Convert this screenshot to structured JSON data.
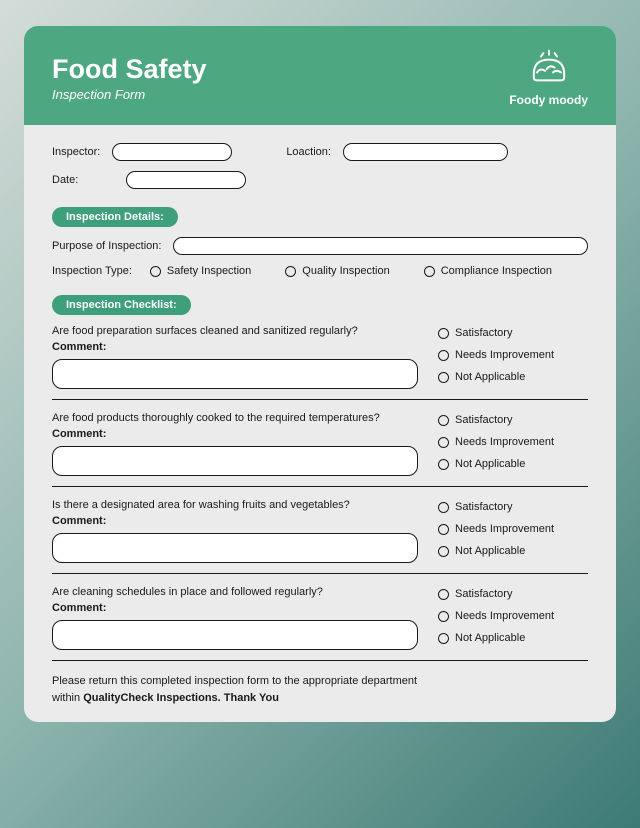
{
  "colors": {
    "header_bg": "#4da881",
    "pill_bg": "#3da07b",
    "card_bg": "#ebebeb",
    "text": "#1a1a1a",
    "border": "#1a1a1a"
  },
  "header": {
    "title": "Food Safety",
    "subtitle": "Inspection Form",
    "brand": "Foody moody"
  },
  "basic": {
    "inspector_label": "Inspector:",
    "location_label": "Loaction:",
    "date_label": "Date:"
  },
  "details": {
    "section_title": "Inspection Details:",
    "purpose_label": "Purpose of Inspection:",
    "type_label": "Inspection Type:",
    "types": [
      "Safety Inspection",
      "Quality Inspection",
      "Compliance Inspection"
    ]
  },
  "checklist": {
    "section_title": "Inspection Checklist:",
    "comment_label": "Comment:",
    "ratings": [
      "Satisfactory",
      "Needs Improvement",
      "Not Applicable"
    ],
    "items": [
      "Are food preparation surfaces cleaned and sanitized regularly?",
      "Are food products thoroughly cooked to the required temperatures?",
      "Is there a designated area for washing fruits and vegetables?",
      "Are cleaning schedules in place and followed regularly?"
    ]
  },
  "footer": {
    "line1": "Please return this completed inspection form to the appropriate department",
    "line2_prefix": "within ",
    "line2_bold": "QualityCheck Inspections. Thank You"
  }
}
